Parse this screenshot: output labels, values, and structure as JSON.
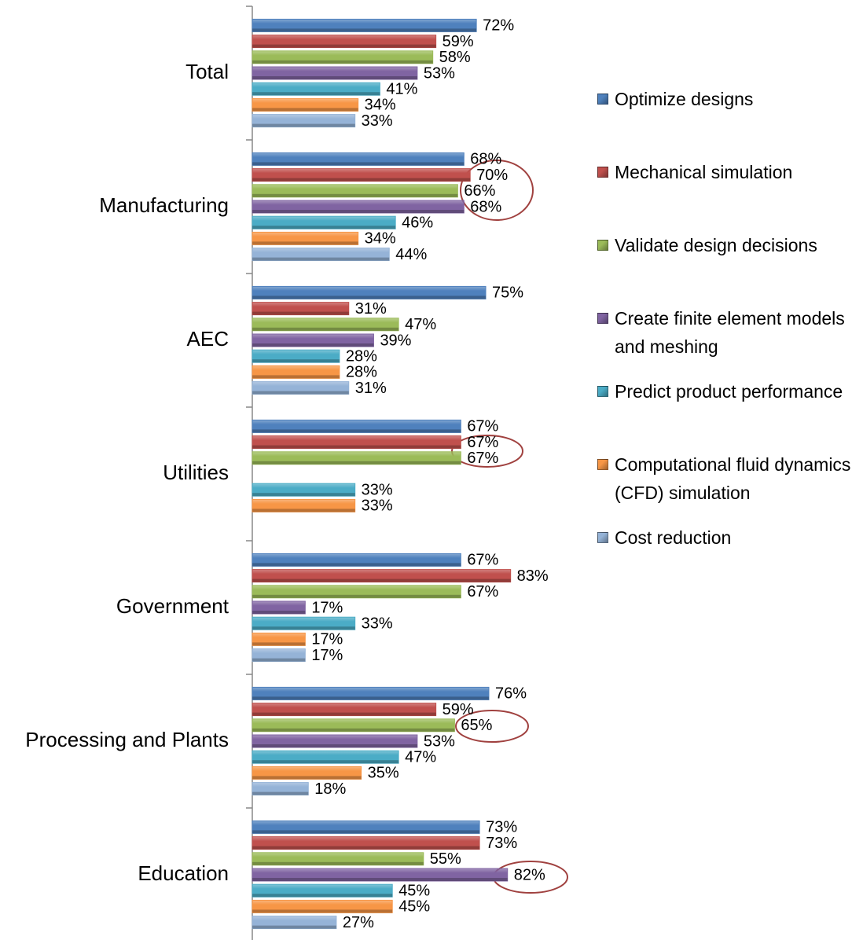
{
  "chart_data": {
    "type": "bar",
    "orientation": "horizontal",
    "categories": [
      "Total",
      "Manufacturing",
      "AEC",
      "Utilities",
      "Government",
      "Processing and Plants",
      "Education"
    ],
    "series": [
      {
        "name": "Optimize designs",
        "color": "#4f81bd",
        "values": [
          72,
          68,
          75,
          67,
          67,
          76,
          73
        ],
        "value_labels": [
          "72%",
          "68%",
          "75%",
          "67%",
          "67%",
          "76%",
          "73%"
        ]
      },
      {
        "name": "Mechanical simulation",
        "color": "#c0504d",
        "values": [
          59,
          70,
          31,
          67,
          83,
          59,
          73
        ],
        "value_labels": [
          "59%",
          "70%",
          "31%",
          "67%",
          "83%",
          "59%",
          "73%"
        ]
      },
      {
        "name": "Validate design decisions",
        "color": "#9bbb59",
        "values": [
          58,
          66,
          47,
          67,
          67,
          65,
          55
        ],
        "value_labels": [
          "58%",
          "66%",
          "47%",
          "67%",
          "67%",
          "65%",
          "55%"
        ]
      },
      {
        "name": "Create finite element models and meshing",
        "color": "#8064a2",
        "values": [
          53,
          68,
          39,
          null,
          17,
          53,
          82
        ],
        "value_labels": [
          "53%",
          "68%",
          "39%",
          null,
          "17%",
          "53%",
          "82%"
        ]
      },
      {
        "name": "Predict product performance",
        "color": "#4bacc6",
        "values": [
          41,
          46,
          28,
          33,
          33,
          47,
          45
        ],
        "value_labels": [
          "41%",
          "46%",
          "28%",
          "33%",
          "33%",
          "47%",
          "45%"
        ]
      },
      {
        "name": "Computational fluid dynamics (CFD) simulation",
        "color": "#f79646",
        "values": [
          34,
          34,
          28,
          33,
          17,
          35,
          45
        ],
        "value_labels": [
          "34%",
          "34%",
          "28%",
          "33%",
          "17%",
          "35%",
          "45%"
        ]
      },
      {
        "name": "Cost reduction",
        "color": "#95b3d7",
        "values": [
          33,
          44,
          31,
          null,
          17,
          18,
          27
        ],
        "value_labels": [
          "33%",
          "44%",
          "31%",
          null,
          "17%",
          "18%",
          "27%"
        ]
      }
    ],
    "legend": "right"
  }
}
